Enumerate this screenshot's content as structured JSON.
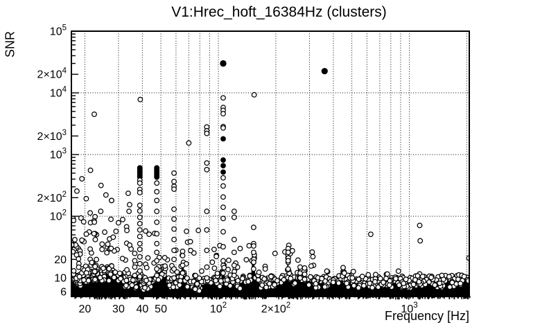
{
  "chart_data": {
    "type": "scatter",
    "title": "V1:Hrec_hoft_16384Hz (clusters)",
    "xlabel": "Frequency [Hz]",
    "ylabel": "SNR",
    "xscale": "log",
    "yscale": "log",
    "xlim": [
      17,
      2060
    ],
    "ylim": [
      5,
      100000
    ],
    "grid": {
      "style": "dotted",
      "x_lines": "all-log-subdivisions",
      "y_lines": "decades-only"
    },
    "legend": "none",
    "marker": {
      "open": "circle-outline",
      "filled": "solid-dot"
    },
    "xticks": [
      {
        "v": 20,
        "m": "20"
      },
      {
        "v": 30,
        "m": "30"
      },
      {
        "v": 40,
        "m": "40"
      },
      {
        "v": 50,
        "m": "50"
      },
      {
        "v": 100,
        "m": "10",
        "e": "2"
      },
      {
        "v": 200,
        "m": "2×10",
        "e": "2"
      },
      {
        "v": 1000,
        "m": "10",
        "e": "3"
      }
    ],
    "yticks": [
      {
        "v": 100000,
        "m": "10",
        "e": "5"
      },
      {
        "v": 20000,
        "m": "2×10",
        "e": "4"
      },
      {
        "v": 10000,
        "m": "10",
        "e": "4"
      },
      {
        "v": 2000,
        "m": "2×10",
        "e": "3"
      },
      {
        "v": 1000,
        "m": "10",
        "e": "3"
      },
      {
        "v": 200,
        "m": "2×10",
        "e": "2"
      },
      {
        "v": 100,
        "m": "10",
        "e": "2"
      },
      {
        "v": 20,
        "m": "20"
      },
      {
        "v": 10,
        "m": "10"
      },
      {
        "v": 6,
        "m": "6"
      }
    ],
    "notable_points": [
      {
        "f": 106,
        "snr": 30000,
        "filled": true
      },
      {
        "f": 360,
        "snr": 22500,
        "filled": true
      },
      {
        "f": 154,
        "snr": 9300,
        "filled": false
      },
      {
        "f": 39,
        "snr": 7800,
        "filled": false
      },
      {
        "f": 22.4,
        "snr": 4500,
        "filled": false
      },
      {
        "f": 70,
        "snr": 1540,
        "filled": false
      },
      {
        "f": 21.4,
        "snr": 556,
        "filled": false
      },
      {
        "f": 19.3,
        "snr": 405,
        "filled": false
      },
      {
        "f": 24.3,
        "snr": 316,
        "filled": false
      },
      {
        "f": 1133,
        "snr": 71,
        "filled": false
      },
      {
        "f": 628,
        "snr": 51,
        "filled": false
      },
      {
        "f": 1140,
        "snr": 40,
        "filled": false
      },
      {
        "f": 130,
        "snr": 30,
        "filled": false
      },
      {
        "f": 95,
        "snr": 29,
        "filled": false
      },
      {
        "f": 198,
        "snr": 25,
        "filled": false
      },
      {
        "f": 2050,
        "snr": 21,
        "filled": false
      },
      {
        "f": 93,
        "snr": 18,
        "filled": false
      },
      {
        "f": 315,
        "snr": 16,
        "filled": false
      },
      {
        "f": 306,
        "snr": 15.6,
        "filled": false
      },
      {
        "f": 450,
        "snr": 14.7,
        "filled": false
      },
      {
        "f": 176,
        "snr": 14,
        "filled": false
      },
      {
        "f": 877,
        "snr": 12.9,
        "filled": false
      },
      {
        "f": 370,
        "snr": 12.9,
        "filled": false
      },
      {
        "f": 509,
        "snr": 12.7,
        "filled": false
      },
      {
        "f": 1480,
        "snr": 11,
        "filled": false
      },
      {
        "f": 1302,
        "snr": 10.2,
        "filled": false
      },
      {
        "f": 503,
        "snr": 10,
        "filled": false
      },
      {
        "f": 756,
        "snr": 9.8,
        "filled": false
      },
      {
        "f": 960,
        "snr": 9.5,
        "filled": false
      }
    ],
    "line_clusters": [
      {
        "f": 38.8,
        "filled": [
          610,
          585,
          560,
          540,
          520,
          500,
          480,
          462,
          445,
          430
        ],
        "open": [
          385,
          345,
          272,
          242,
          150,
          122,
          96,
          76,
          60,
          47,
          36,
          29,
          22,
          17,
          13,
          10.5
        ]
      },
      {
        "f": 47.6,
        "filled": [
          610,
          585,
          560,
          540,
          520,
          500,
          480,
          462,
          445,
          430
        ],
        "open": [
          345,
          250,
          180,
          120,
          80,
          52,
          36,
          26,
          19,
          14,
          11
        ]
      },
      {
        "f": 58.6,
        "open": [
          500,
          365,
          305,
          275,
          130,
          90,
          62,
          42,
          28,
          20,
          14,
          10
        ]
      },
      {
        "f": 87,
        "open": [
          2800,
          2430,
          2200,
          730,
          570,
          120,
          60,
          28,
          15,
          10
        ]
      },
      {
        "f": 106,
        "filled": [
          30000,
          1800,
          815,
          660,
          520
        ],
        "open": [
          8300,
          5800,
          5200,
          4600,
          2840,
          2700,
          420,
          310,
          205,
          140,
          92,
          56,
          32,
          19,
          12
        ]
      },
      {
        "f": 121,
        "open": [
          120,
          96,
          42,
          26,
          16,
          11
        ]
      },
      {
        "f": 153,
        "open": [
          66,
          36,
          33,
          26,
          18,
          14
        ]
      },
      {
        "f": 232,
        "open": [
          30,
          26,
          19,
          14
        ]
      },
      {
        "f": 65,
        "open": [
          27,
          23,
          16,
          12
        ]
      },
      {
        "f": 36.5,
        "open": [
          25,
          19,
          15,
          11
        ]
      },
      {
        "f": 268,
        "open": [
          15,
          12,
          10
        ]
      },
      {
        "f": 283,
        "open": [
          14.5,
          11.5,
          9.5
        ]
      }
    ],
    "noise_band_profile": [
      [
        17,
        9.5
      ],
      [
        19,
        9
      ],
      [
        21,
        10
      ],
      [
        23,
        11
      ],
      [
        25,
        12.5
      ],
      [
        26,
        13
      ],
      [
        27.5,
        12.5
      ],
      [
        29,
        10.5
      ],
      [
        31,
        9
      ],
      [
        33,
        8.5
      ],
      [
        36,
        7.6
      ],
      [
        39,
        9
      ],
      [
        41,
        7.5
      ],
      [
        44,
        7.8
      ],
      [
        46.5,
        8.5
      ],
      [
        48,
        14
      ],
      [
        49.5,
        11.5
      ],
      [
        51,
        12.5
      ],
      [
        52.5,
        13
      ],
      [
        54,
        10
      ],
      [
        56,
        8.5
      ],
      [
        58,
        8.2
      ],
      [
        61,
        8.5
      ],
      [
        63.5,
        9
      ],
      [
        64.5,
        19
      ],
      [
        65.5,
        20
      ],
      [
        66.5,
        9.5
      ],
      [
        69,
        8
      ],
      [
        73,
        7.6
      ],
      [
        78,
        7.4
      ],
      [
        83,
        7.8
      ],
      [
        88,
        8.2
      ],
      [
        93,
        8
      ],
      [
        98,
        8.5
      ],
      [
        103,
        9
      ],
      [
        105,
        13
      ],
      [
        107,
        13.5
      ],
      [
        108.5,
        9.5
      ],
      [
        113,
        8.2
      ],
      [
        119,
        9
      ],
      [
        120.5,
        13.5
      ],
      [
        122,
        12.5
      ],
      [
        124,
        9
      ],
      [
        130,
        8.2
      ],
      [
        137,
        8.6
      ],
      [
        143,
        9
      ],
      [
        148,
        10
      ],
      [
        150.5,
        19
      ],
      [
        153,
        21
      ],
      [
        155.5,
        13
      ],
      [
        158,
        9.2
      ],
      [
        165,
        8.2
      ],
      [
        173,
        8
      ],
      [
        182,
        8.4
      ],
      [
        192,
        8.6
      ],
      [
        202,
        8.8
      ],
      [
        212,
        9
      ],
      [
        222,
        10
      ],
      [
        227,
        11
      ],
      [
        229.5,
        16
      ],
      [
        231.5,
        22
      ],
      [
        234,
        13
      ],
      [
        237,
        9.5
      ],
      [
        243,
        9
      ],
      [
        250,
        9.5
      ],
      [
        256,
        11
      ],
      [
        262,
        10
      ],
      [
        268,
        10.5
      ],
      [
        274,
        11
      ],
      [
        280,
        12
      ],
      [
        287,
        10.5
      ],
      [
        295,
        9.2
      ],
      [
        310,
        8.4
      ],
      [
        330,
        8.2
      ],
      [
        350,
        8.5
      ],
      [
        370,
        8.2
      ],
      [
        395,
        8
      ],
      [
        420,
        8.6
      ],
      [
        445,
        9
      ],
      [
        452,
        10.5
      ],
      [
        460,
        9.2
      ],
      [
        480,
        8.6
      ],
      [
        495,
        9
      ],
      [
        503,
        10
      ],
      [
        512,
        9
      ],
      [
        535,
        8.4
      ],
      [
        560,
        8.2
      ],
      [
        580,
        8.4
      ],
      [
        600,
        9.6
      ],
      [
        615,
        8.8
      ],
      [
        640,
        8.2
      ],
      [
        670,
        8
      ],
      [
        700,
        8.3
      ],
      [
        730,
        8.6
      ],
      [
        752,
        9.2
      ],
      [
        775,
        8.6
      ],
      [
        800,
        8.2
      ],
      [
        840,
        8.4
      ],
      [
        880,
        8.2
      ],
      [
        920,
        8.4
      ],
      [
        960,
        8.2
      ],
      [
        1000,
        8.1
      ],
      [
        1050,
        8.4
      ],
      [
        1100,
        8.8
      ],
      [
        1120,
        9.6
      ],
      [
        1150,
        8.8
      ],
      [
        1200,
        8.3
      ],
      [
        1260,
        8.2
      ],
      [
        1330,
        8.5
      ],
      [
        1400,
        8.2
      ],
      [
        1480,
        8.5
      ],
      [
        1560,
        8.8
      ],
      [
        1650,
        8.5
      ],
      [
        1750,
        9
      ],
      [
        1800,
        9.8
      ],
      [
        1860,
        9.2
      ],
      [
        1920,
        9.6
      ],
      [
        1980,
        9.4
      ],
      [
        2030,
        9.8
      ],
      [
        2060,
        10
      ]
    ],
    "scatter_gen": {
      "seed": 1234,
      "band_fuzz": {
        "count": 540,
        "lo": 0.82,
        "span": 0.45
      },
      "edge_dashes": {
        "count": 300
      },
      "regions": [
        {
          "fmin": 17,
          "fmax": 35,
          "smin": 9,
          "smax": 280,
          "count": 95,
          "bias": 2.3
        },
        {
          "fmin": 17,
          "fmax": 23,
          "smin": 9,
          "smax": 120,
          "count": 30,
          "bias": 2.0
        },
        {
          "fmin": 35,
          "fmax": 60,
          "smin": 9,
          "smax": 60,
          "count": 26,
          "bias": 2.0
        },
        {
          "fmin": 60,
          "fmax": 105,
          "smin": 9,
          "smax": 60,
          "count": 26,
          "bias": 2.2
        },
        {
          "fmin": 105,
          "fmax": 320,
          "smin": 9,
          "smax": 40,
          "count": 30,
          "bias": 2.0
        },
        {
          "fmin": 320,
          "fmax": 2060,
          "smin": 8,
          "smax": 13,
          "count": 20,
          "bias": 1.5
        }
      ]
    },
    "colors": {
      "foreground": "#000000",
      "background": "#ffffff"
    }
  }
}
